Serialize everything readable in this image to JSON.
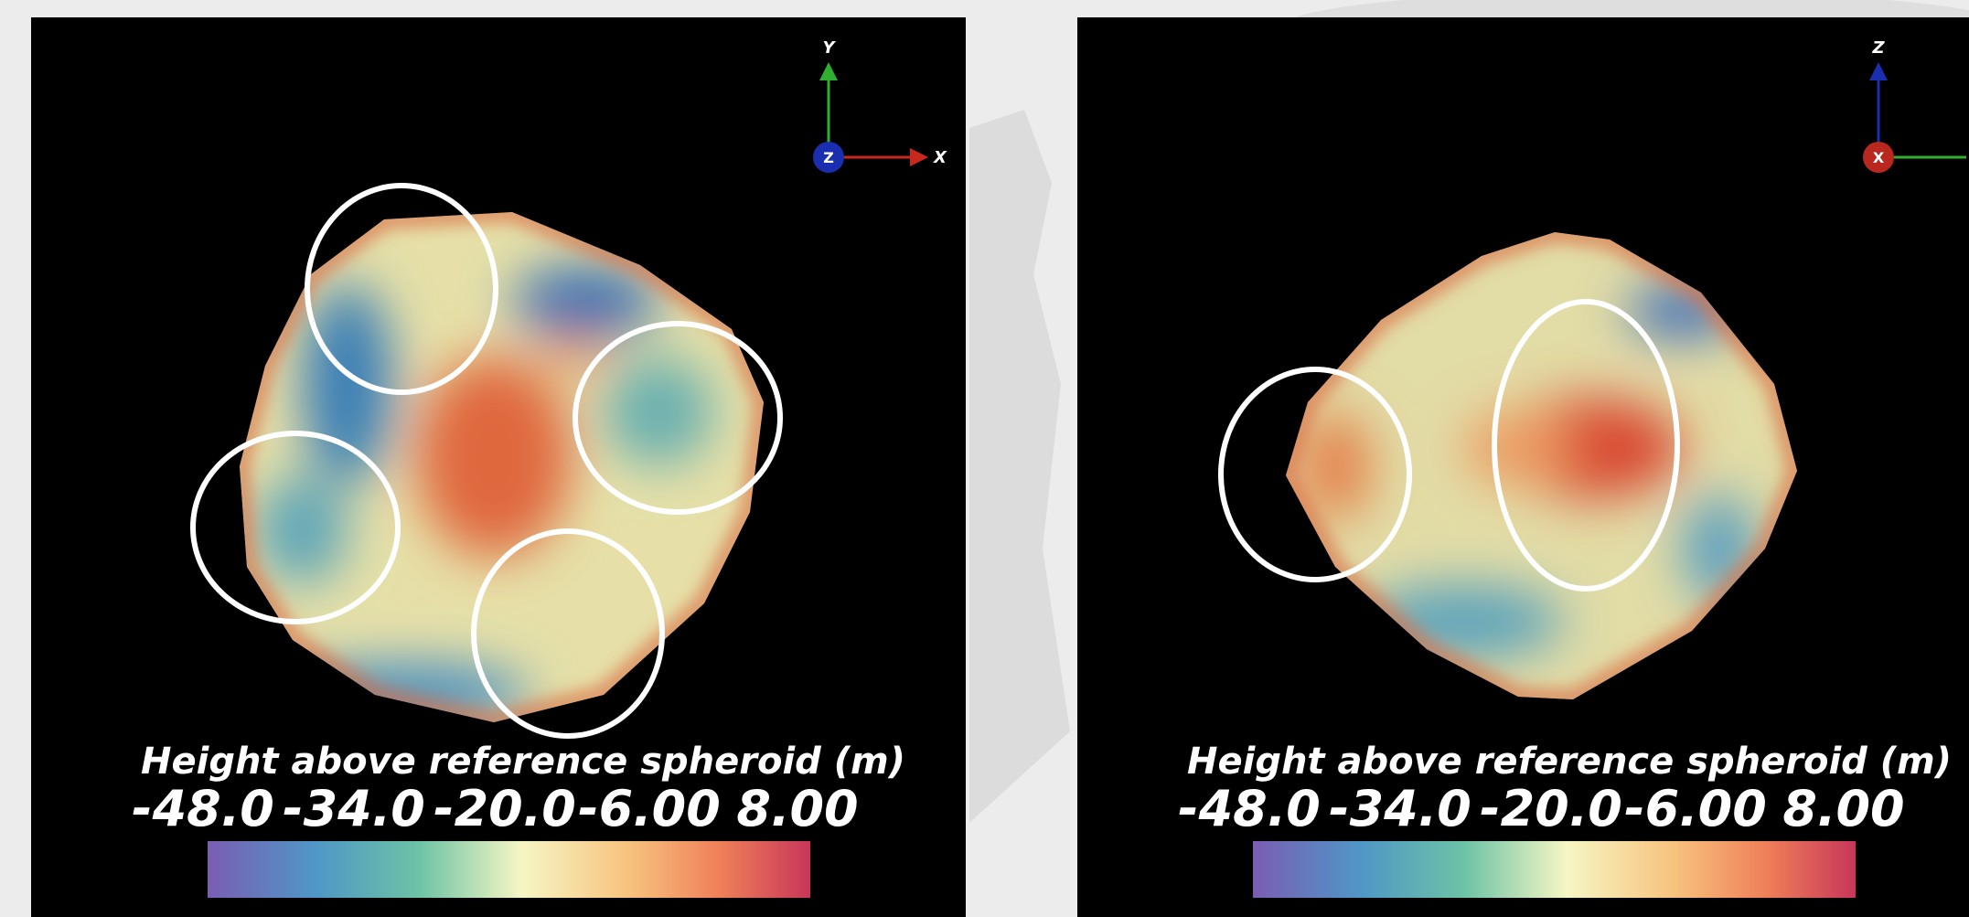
{
  "panels": [
    {
      "axes": {
        "up": "Y",
        "center": "Z",
        "right": "X"
      },
      "colorbar": {
        "title": "Height above reference spheroid (m)",
        "ticks": [
          "-48.0",
          "-34.0",
          "-20.0",
          "-6.00",
          "8.00"
        ]
      }
    },
    {
      "axes": {
        "up": "Z",
        "center": "X"
      },
      "colorbar": {
        "title": "Height above reference spheroid (m)",
        "ticks": [
          "-48.0",
          "-34.0",
          "-20.0",
          "-6.00",
          "8.00"
        ]
      }
    }
  ]
}
